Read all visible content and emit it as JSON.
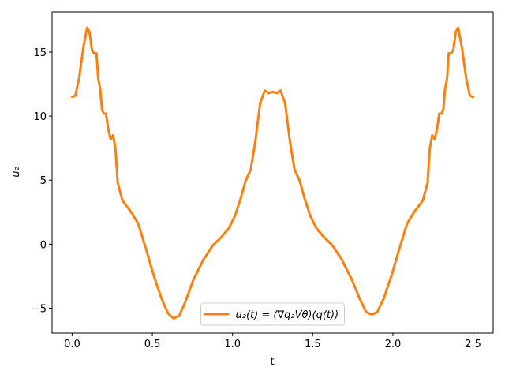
{
  "chart_data": {
    "type": "line",
    "xlabel": "t",
    "ylabel": "u₂",
    "x": [
      0,
      0.02,
      0.044,
      0.069,
      0.093,
      0.108,
      0.123,
      0.137,
      0.152,
      0.162,
      0.176,
      0.186,
      0.196,
      0.211,
      0.225,
      0.24,
      0.255,
      0.27,
      0.284,
      0.314,
      0.363,
      0.412,
      0.461,
      0.51,
      0.559,
      0.598,
      0.632,
      0.667,
      0.706,
      0.755,
      0.819,
      0.877,
      0.926,
      0.975,
      1.015,
      1.049,
      1.083,
      1.113,
      1.142,
      1.172,
      1.201,
      1.225,
      1.25,
      1.275,
      1.299,
      1.328,
      1.358,
      1.387,
      1.417,
      1.451,
      1.485,
      1.525,
      1.574,
      1.623,
      1.681,
      1.745,
      1.794,
      1.833,
      1.868,
      1.902,
      1.941,
      1.99,
      2.039,
      2.088,
      2.137,
      2.186,
      2.216,
      2.23,
      2.245,
      2.26,
      2.275,
      2.289,
      2.304,
      2.314,
      2.324,
      2.338,
      2.348,
      2.363,
      2.377,
      2.392,
      2.407,
      2.431,
      2.456,
      2.48,
      2.5
    ],
    "series": [
      {
        "name": "u₂(t) = (∇q₂Vθ)(q(t))",
        "color": "#ff7f0e",
        "values": [
          11.5,
          11.6,
          13,
          15.3,
          16.9,
          16.6,
          15.2,
          14.9,
          14.9,
          13,
          12,
          10.5,
          10.2,
          10.2,
          9,
          8.2,
          8.5,
          7.5,
          4.8,
          3.4,
          2.6,
          1.6,
          -0.4,
          -2.5,
          -4.3,
          -5.4,
          -5.8,
          -5.6,
          -4.5,
          -2.8,
          -1.2,
          -0.1,
          0.5,
          1.2,
          2.2,
          3.5,
          5,
          5.8,
          8,
          11,
          12,
          11.8,
          11.9,
          11.8,
          12,
          11,
          8,
          5.8,
          5,
          3.5,
          2.2,
          1.2,
          0.5,
          -0.1,
          -1.2,
          -2.8,
          -4.3,
          -5.3,
          -5.5,
          -5.3,
          -4.3,
          -2.5,
          -0.4,
          1.6,
          2.6,
          3.4,
          4.8,
          7.5,
          8.5,
          8.2,
          9,
          10.2,
          10.2,
          10.5,
          12,
          13,
          14.9,
          14.9,
          15.2,
          16.6,
          16.9,
          15.3,
          13,
          11.6,
          11.5
        ]
      }
    ],
    "xlim": [
      -0.125,
      2.625
    ],
    "xticks": [
      {
        "value": 0,
        "label": "0.0"
      },
      {
        "value": 0.5,
        "label": "0.5"
      },
      {
        "value": 1,
        "label": "1.0"
      },
      {
        "value": 1.5,
        "label": "1.5"
      },
      {
        "value": 2,
        "label": "2.0"
      },
      {
        "value": 2.5,
        "label": "2.5"
      }
    ],
    "ylim": [
      -6.94,
      18.14
    ],
    "yticks": [
      {
        "value": -5,
        "label": "−5"
      },
      0,
      5,
      10,
      15
    ],
    "legend": "lower center"
  }
}
